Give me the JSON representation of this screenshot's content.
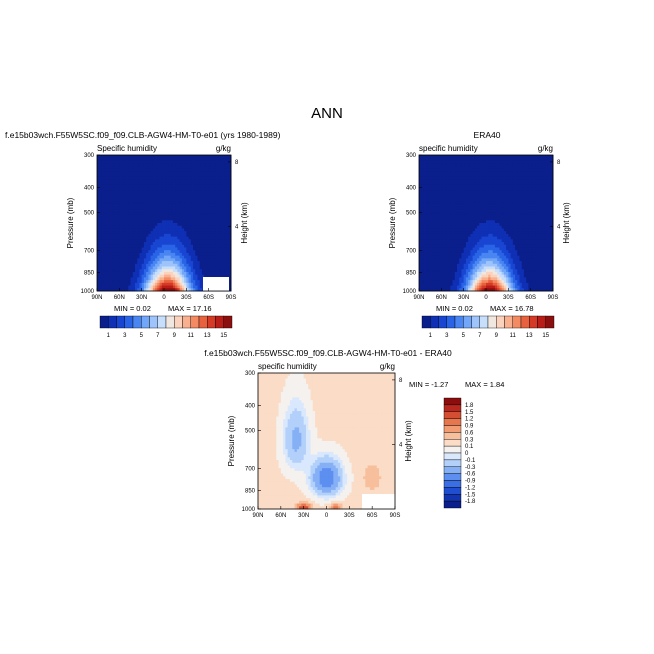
{
  "title": "ANN",
  "palettes": {
    "humidity": [
      "#0a1e8c",
      "#0f2fb4",
      "#1846d2",
      "#2a64e6",
      "#4a86f2",
      "#72a6f8",
      "#9ec4fb",
      "#c8dffc",
      "#efe7e0",
      "#fbd2bd",
      "#f9b08e",
      "#f38a62",
      "#e8613e",
      "#d43a26",
      "#b81d18",
      "#8c0f0f"
    ],
    "diff": [
      "#0a1e8c",
      "#1234b0",
      "#1f4fd0",
      "#3a6ee4",
      "#5c8ff0",
      "#86b0f6",
      "#b2d0fa",
      "#d9e8fc",
      "#f4f1ee",
      "#fbdcc6",
      "#f8bf9c",
      "#f29c74",
      "#e6764e",
      "#d34e32",
      "#b8281e",
      "#8c0d0d"
    ]
  },
  "chart_data": [
    {
      "type": "heatmap",
      "name": "model",
      "title": "f.e15b03wch.F55W5SC.f09_f09.CLB-AGW4-HM-T0-e01 (yrs 1980-1989)",
      "subtitle_left": "Specific humidity",
      "subtitle_right": "g/kg",
      "ylabel": "Pressure (mb)",
      "ylabel_right": "Height (km)",
      "x_ticks": [
        "90N",
        "60N",
        "30N",
        "0",
        "30S",
        "60S",
        "90S"
      ],
      "y_ticks": [
        "300",
        "400",
        "500",
        "700",
        "850",
        "1000"
      ],
      "y_right_ticks": [
        "8",
        "4"
      ],
      "min_label": "MIN =   0.02",
      "max_label": "MAX =   17.16",
      "min": 0.02,
      "max": 17.16,
      "colorbar_labels": [
        "1",
        "3",
        "5",
        "7",
        "9",
        "11",
        "13",
        "15"
      ]
    },
    {
      "type": "heatmap",
      "name": "obs",
      "title": "ERA40",
      "subtitle_left": "specific humidity",
      "subtitle_right": "g/kg",
      "ylabel": "Pressure (mb)",
      "ylabel_right": "Height (km)",
      "x_ticks": [
        "90N",
        "60N",
        "30N",
        "0",
        "30S",
        "60S",
        "90S"
      ],
      "y_ticks": [
        "300",
        "400",
        "500",
        "700",
        "850",
        "1000"
      ],
      "y_right_ticks": [
        "8",
        "4"
      ],
      "min_label": "MIN =   0.02",
      "max_label": "MAX =   16.78",
      "min": 0.02,
      "max": 16.78,
      "colorbar_labels": [
        "1",
        "3",
        "5",
        "7",
        "9",
        "11",
        "13",
        "15"
      ]
    },
    {
      "type": "heatmap",
      "name": "difference",
      "title": "f.e15b03wch.F55W5SC.f09_f09.CLB-AGW4-HM-T0-e01 - ERA40",
      "subtitle_left": "specific humidity",
      "subtitle_right": "g/kg",
      "ylabel": "Pressure (mb)",
      "ylabel_right": "Height (km)",
      "x_ticks": [
        "90N",
        "60N",
        "30N",
        "0",
        "30S",
        "60S",
        "90S"
      ],
      "y_ticks": [
        "300",
        "400",
        "500",
        "700",
        "850",
        "1000"
      ],
      "y_right_ticks": [
        "8",
        "4"
      ],
      "min_label": "MIN =   -1.27",
      "max_label": "MAX =    1.84",
      "min": -1.27,
      "max": 1.84,
      "colorbar_labels": [
        "1.8",
        "1.5",
        "1.2",
        "0.9",
        "0.6",
        "0.3",
        "0.1",
        "0",
        "-0.1",
        "-0.3",
        "-0.6",
        "-0.9",
        "-1.2",
        "-1.5",
        "-1.8"
      ]
    }
  ]
}
